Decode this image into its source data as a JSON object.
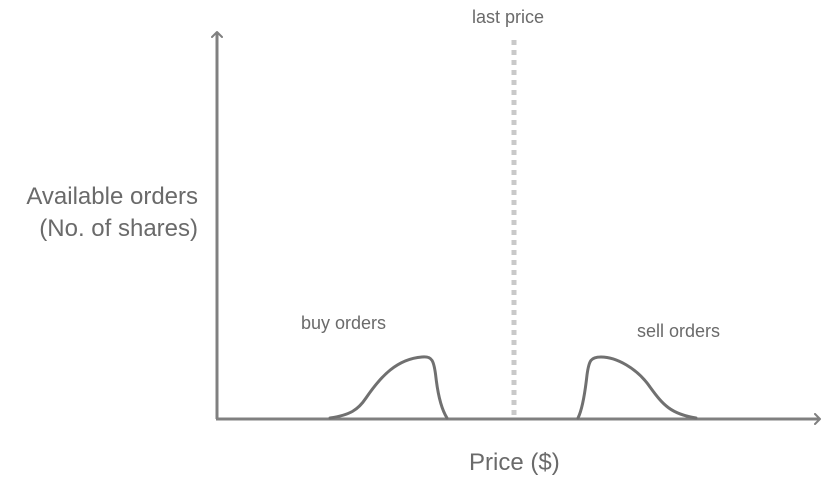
{
  "diagram": {
    "y_axis_label_line1": "Available orders",
    "y_axis_label_line2": "(No. of shares)",
    "x_axis_label": "Price ($)",
    "last_price_label": "last price",
    "buy_orders_label": "buy orders",
    "sell_orders_label": "sell orders",
    "colors": {
      "axis": "#808080",
      "curve": "#707070",
      "last_price_line": "#c9c9c9",
      "text": "#6a6a6a"
    }
  }
}
